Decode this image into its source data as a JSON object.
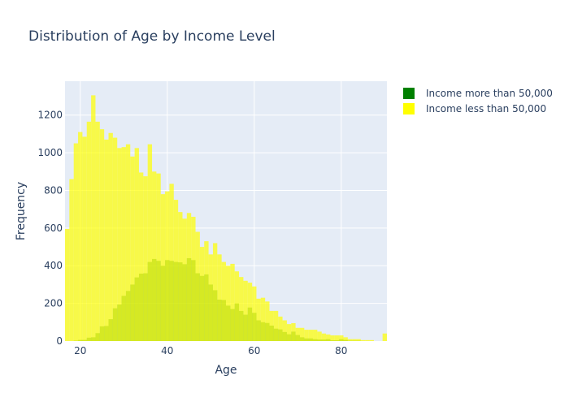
{
  "chart_data": {
    "type": "bar",
    "title": "Distribution of Age by Income Level",
    "xlabel": "Age",
    "ylabel": "Frequency",
    "xlim": [
      16.5,
      90.5
    ],
    "ylim": [
      0,
      1380
    ],
    "xticks": [
      20,
      40,
      60,
      80
    ],
    "yticks": [
      0,
      200,
      400,
      600,
      800,
      1000,
      1200
    ],
    "grid": true,
    "barmode": "overlay",
    "legend_position": "top-right",
    "x": [
      17,
      18,
      19,
      20,
      21,
      22,
      23,
      24,
      25,
      26,
      27,
      28,
      29,
      30,
      31,
      32,
      33,
      34,
      35,
      36,
      37,
      38,
      39,
      40,
      41,
      42,
      43,
      44,
      45,
      46,
      47,
      48,
      49,
      50,
      51,
      52,
      53,
      54,
      55,
      56,
      57,
      58,
      59,
      60,
      61,
      62,
      63,
      64,
      65,
      66,
      67,
      68,
      69,
      70,
      71,
      72,
      73,
      74,
      75,
      76,
      77,
      78,
      79,
      80,
      81,
      82,
      83,
      84,
      85,
      86,
      87,
      88,
      89,
      90
    ],
    "series": [
      {
        "name": "Income more than 50,000",
        "color": "#008000",
        "opacity": 0.5,
        "values": [
          0,
          0,
          2,
          6,
          6,
          18,
          20,
          42,
          78,
          80,
          116,
          174,
          194,
          240,
          266,
          300,
          338,
          358,
          360,
          420,
          436,
          426,
          400,
          430,
          426,
          420,
          418,
          408,
          440,
          430,
          360,
          346,
          354,
          300,
          270,
          220,
          218,
          188,
          170,
          200,
          160,
          140,
          178,
          150,
          110,
          100,
          96,
          82,
          66,
          62,
          48,
          36,
          50,
          32,
          20,
          14,
          14,
          10,
          8,
          8,
          10,
          4,
          4,
          10,
          6,
          2,
          2,
          2,
          0,
          0,
          0,
          0,
          0,
          0
        ]
      },
      {
        "name": "Income less than 50,000",
        "color": "#ffff00",
        "opacity": 0.7,
        "values": [
          595,
          860,
          1050,
          1110,
          1085,
          1165,
          1305,
          1165,
          1125,
          1070,
          1105,
          1080,
          1025,
          1030,
          1045,
          980,
          1025,
          895,
          875,
          1045,
          900,
          890,
          780,
          795,
          835,
          750,
          685,
          650,
          680,
          660,
          580,
          500,
          530,
          460,
          520,
          460,
          420,
          400,
          410,
          370,
          340,
          320,
          310,
          290,
          225,
          230,
          210,
          160,
          160,
          130,
          110,
          90,
          95,
          70,
          70,
          60,
          60,
          60,
          50,
          40,
          35,
          30,
          30,
          30,
          20,
          10,
          10,
          10,
          5,
          5,
          5,
          0,
          0,
          40
        ]
      }
    ]
  }
}
